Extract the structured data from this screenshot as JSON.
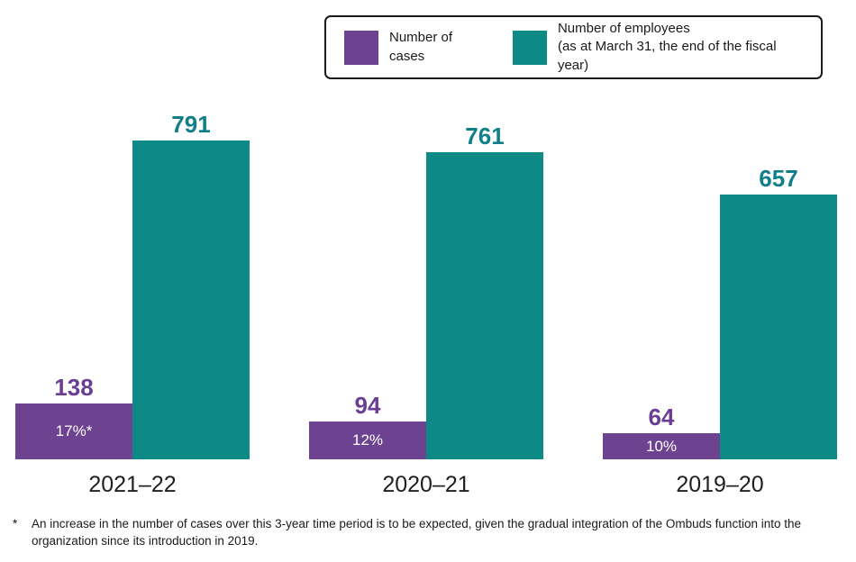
{
  "legend": {
    "items": [
      {
        "label": "Number of cases",
        "color": "#6d4290"
      },
      {
        "label": "Number of employees\n(as at March 31, the end of the fiscal year)",
        "color": "#0d8a86"
      }
    ]
  },
  "chart_data": {
    "type": "bar",
    "title": "",
    "xlabel": "",
    "ylabel": "",
    "categories": [
      "2021–22",
      "2020–21",
      "2019–20"
    ],
    "series": [
      {
        "name": "Number of cases",
        "color": "#6d4290",
        "label_color": "#6b3e94",
        "values": [
          138,
          94,
          64
        ],
        "inside_labels": [
          "17%*",
          "12%",
          "10%"
        ]
      },
      {
        "name": "Number of employees (as at March 31, the end of the fiscal year)",
        "color": "#0d8a86",
        "label_color": "#0f7f8a",
        "values": [
          791,
          761,
          657
        ],
        "inside_labels": [
          "",
          "",
          ""
        ]
      }
    ],
    "ylim": [
      0,
      1140
    ],
    "grid": false,
    "legend_position": "top",
    "value_labels": "above-bars"
  },
  "footnote": {
    "marker": "*",
    "text": "An increase in the number of cases over this 3-year time period is to be expected, given the gradual integration of the Ombuds function into the organization since its introduction in 2019."
  }
}
